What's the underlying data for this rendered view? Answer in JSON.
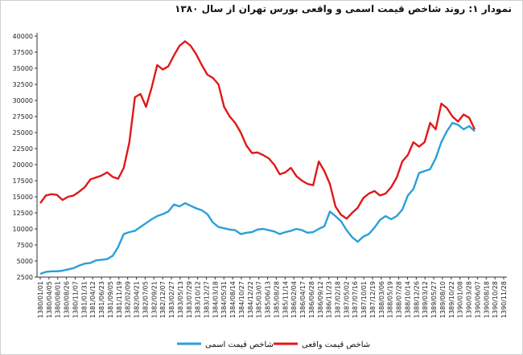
{
  "chart_data": {
    "type": "line",
    "title": "نمودار ۱: روند شاخص قیمت اسمی و واقعی بورس تهران از سال ۱۳۸۰",
    "xlabel": "",
    "ylabel": "",
    "ylim": [
      2500,
      40000
    ],
    "y_ticks": [
      2500,
      5000,
      7500,
      10000,
      12500,
      15000,
      17500,
      20000,
      22500,
      25000,
      27500,
      30000,
      32500,
      35000,
      37500,
      40000
    ],
    "x_tick_labels": [
      "1380/01/01",
      "1380/04/05",
      "1380/08/01",
      "1380/08/26",
      "1380/11/07",
      "1381/01/31",
      "1381/04/12",
      "1381/06/23",
      "1381/09/05",
      "1381/11/19",
      "1382/02/09",
      "1382/04/21",
      "1382/07/05",
      "1382/09/21",
      "1382/12/07",
      "1383/02/27",
      "1383/05/13",
      "1383/07/29",
      "1383/10/12",
      "1383/12/27",
      "1384/03/18",
      "1384/05/31",
      "1384/08/14",
      "1384/10/27",
      "1384/12/22",
      "1385/03/07",
      "1385/06/13",
      "1385/08/28",
      "1385/11/14",
      "1386/02/04",
      "1386/04/17",
      "1386/06/28",
      "1386/09/12",
      "1386/11/23",
      "1387/02/18",
      "1387/05/02",
      "1387/07/16",
      "1387/10/01",
      "1387/12/19",
      "1388/03/06",
      "1388/05/19",
      "1388/07/28",
      "1388/10/14",
      "1388/12/26",
      "1389/03/12",
      "1389/05/27",
      "1389/08/10",
      "1389/10/22",
      "1390/01/08",
      "1390/03/28",
      "1390/06/07",
      "1390/08/18",
      "1390/10/28",
      "1390/11/28"
    ],
    "legend": {
      "position": "bottom"
    },
    "grid": false,
    "series": [
      {
        "name": "شاخص قیمت اسمی",
        "color": "#2a9fd8",
        "values": [
          3000,
          3300,
          3400,
          3400,
          3500,
          3700,
          3900,
          4300,
          4600,
          4700,
          5100,
          5200,
          5300,
          5800,
          7200,
          9200,
          9500,
          9700,
          10300,
          10900,
          11500,
          12000,
          12300,
          12700,
          13800,
          13500,
          14000,
          13600,
          13200,
          12900,
          12300,
          11000,
          10300,
          10100,
          9900,
          9800,
          9200,
          9400,
          9500,
          9900,
          10000,
          9800,
          9600,
          9200,
          9500,
          9700,
          10000,
          9800,
          9400,
          9500,
          10000,
          10400,
          12700,
          12000,
          11200,
          9800,
          8700,
          8000,
          8800,
          9200,
          10200,
          11400,
          12000,
          11500,
          12000,
          13000,
          15200,
          16200,
          18700,
          19000,
          19300,
          21000,
          23500,
          25200,
          26500,
          26200,
          25500,
          26000,
          25200
        ],
        "highlight_note": ""
      },
      {
        "name": "شاخص قیمت واقعی",
        "color": "#e01818",
        "values": [
          14000,
          15200,
          15400,
          15300,
          14500,
          15000,
          15200,
          15800,
          16500,
          17700,
          18000,
          18300,
          18800,
          18100,
          17800,
          19500,
          23500,
          30500,
          31000,
          29000,
          32000,
          35500,
          34800,
          35300,
          37000,
          38500,
          39200,
          38500,
          37200,
          35500,
          34000,
          33500,
          32500,
          29000,
          27500,
          26500,
          25000,
          23000,
          21800,
          21900,
          21500,
          21000,
          20000,
          18500,
          18800,
          19500,
          18200,
          17500,
          17000,
          16800,
          20500,
          19000,
          17000,
          13500,
          12200,
          11600,
          12500,
          13300,
          14800,
          15500,
          15900,
          15200,
          15500,
          16500,
          18000,
          20500,
          21500,
          23500,
          22800,
          23500,
          26500,
          25500,
          29500,
          28800,
          27500,
          26700,
          27800,
          27300,
          25500
        ]
      }
    ]
  }
}
